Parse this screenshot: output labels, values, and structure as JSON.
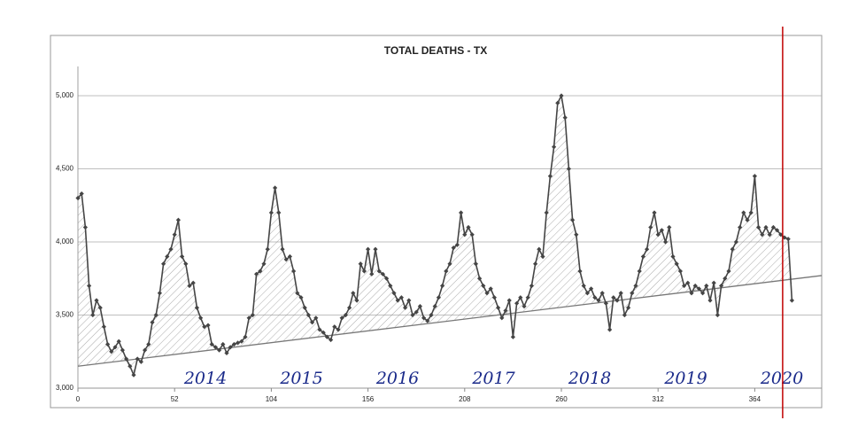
{
  "chart_data": {
    "type": "line",
    "title": "TOTAL DEATHS - TX",
    "x": [
      0,
      2,
      4,
      6,
      8,
      10,
      12,
      14,
      16,
      18,
      20,
      22,
      24,
      26,
      28,
      30,
      32,
      34,
      36,
      38,
      40,
      42,
      44,
      46,
      48,
      50,
      52,
      54,
      56,
      58,
      60,
      62,
      64,
      66,
      68,
      70,
      72,
      74,
      76,
      78,
      80,
      82,
      84,
      86,
      88,
      90,
      92,
      94,
      96,
      98,
      100,
      102,
      104,
      106,
      108,
      110,
      112,
      114,
      116,
      118,
      120,
      122,
      124,
      126,
      128,
      130,
      132,
      134,
      136,
      138,
      140,
      142,
      144,
      146,
      148,
      150,
      152,
      154,
      156,
      158,
      160,
      162,
      164,
      166,
      168,
      170,
      172,
      174,
      176,
      178,
      180,
      182,
      184,
      186,
      188,
      190,
      192,
      194,
      196,
      198,
      200,
      202,
      204,
      206,
      208,
      210,
      212,
      214,
      216,
      218,
      220,
      222,
      224,
      226,
      228,
      230,
      232,
      234,
      236,
      238,
      240,
      242,
      244,
      246,
      248,
      250,
      252,
      254,
      256,
      258,
      260,
      262,
      264,
      266,
      268,
      270,
      272,
      274,
      276,
      278,
      280,
      282,
      284,
      286,
      288,
      290,
      292,
      294,
      296,
      298,
      300,
      302,
      304,
      306,
      308,
      310,
      312,
      314,
      316,
      318,
      320,
      322,
      324,
      326,
      328,
      330,
      332,
      334,
      336,
      338,
      340,
      342,
      344,
      346,
      348,
      350,
      352,
      354,
      356,
      358,
      360,
      362,
      364,
      366,
      368,
      370,
      372,
      374,
      376,
      378,
      380,
      382,
      384
    ],
    "series": [
      {
        "color": "#454545",
        "values": [
          4300,
          4330,
          4100,
          3700,
          3500,
          3600,
          3550,
          3420,
          3300,
          3250,
          3280,
          3320,
          3260,
          3200,
          3150,
          3090,
          3200,
          3180,
          3260,
          3300,
          3450,
          3500,
          3650,
          3850,
          3900,
          3950,
          4050,
          4150,
          3900,
          3850,
          3700,
          3720,
          3550,
          3480,
          3420,
          3430,
          3300,
          3280,
          3260,
          3300,
          3240,
          3280,
          3300,
          3310,
          3320,
          3350,
          3480,
          3500,
          3780,
          3800,
          3850,
          3950,
          4200,
          4370,
          4200,
          3950,
          3880,
          3900,
          3800,
          3650,
          3620,
          3550,
          3500,
          3450,
          3480,
          3400,
          3380,
          3350,
          3330,
          3420,
          3400,
          3480,
          3500,
          3550,
          3650,
          3600,
          3850,
          3800,
          3950,
          3780,
          3950,
          3800,
          3780,
          3750,
          3700,
          3650,
          3600,
          3620,
          3550,
          3600,
          3500,
          3520,
          3560,
          3480,
          3460,
          3500,
          3560,
          3620,
          3700,
          3800,
          3850,
          3960,
          3980,
          4200,
          4050,
          4100,
          4050,
          3850,
          3750,
          3700,
          3650,
          3680,
          3620,
          3550,
          3480,
          3530,
          3600,
          3350,
          3580,
          3620,
          3560,
          3620,
          3700,
          3850,
          3950,
          3900,
          4200,
          4450,
          4650,
          4950,
          5000,
          4850,
          4500,
          4150,
          4050,
          3800,
          3700,
          3650,
          3680,
          3620,
          3600,
          3650,
          3580,
          3400,
          3620,
          3600,
          3650,
          3500,
          3550,
          3650,
          3700,
          3800,
          3900,
          3950,
          4100,
          4200,
          4050,
          4080,
          4000,
          4100,
          3900,
          3850,
          3800,
          3700,
          3720,
          3650,
          3700,
          3680,
          3650,
          3700,
          3600,
          3720,
          3500,
          3700,
          3750,
          3800,
          3950,
          4000,
          4100,
          4200,
          4150,
          4200,
          4450,
          4100,
          4050,
          4100,
          4050,
          4100,
          4080,
          4050,
          4030,
          4020,
          3600
        ]
      }
    ],
    "xlim": [
      0,
      400
    ],
    "ylim": [
      3000,
      5200
    ],
    "xticks": [
      0,
      52,
      104,
      156,
      208,
      260,
      312,
      364
    ],
    "yticks": [
      {
        "value": 3000,
        "label": "3,000"
      },
      {
        "value": 3500,
        "label": "3,500"
      },
      {
        "value": 4000,
        "label": "4,000"
      },
      {
        "value": 4500,
        "label": "4,500"
      },
      {
        "value": 5000,
        "label": "5,000"
      }
    ],
    "grid": true,
    "annotations": [
      "2014",
      "2015",
      "2016",
      "2017",
      "2018",
      "2019",
      "2020"
    ],
    "trendline": {
      "x": [
        0,
        400
      ],
      "y": [
        3150,
        3770
      ],
      "color": "#777777"
    },
    "marker_line": {
      "x": 379,
      "color": "#c00000"
    }
  }
}
